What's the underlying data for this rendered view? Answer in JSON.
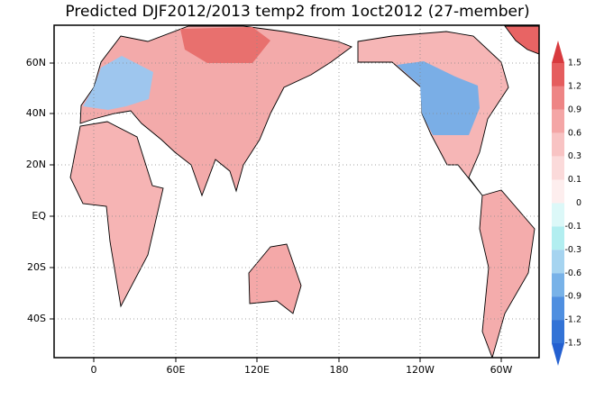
{
  "title": "Predicted DJF2012/2013 temp2 from 1oct2012 (27-member)",
  "lat_labels": [
    "60N",
    "40N",
    "20N",
    "EQ",
    "20S",
    "40S"
  ],
  "lon_labels": [
    "0",
    "60E",
    "120E",
    "180",
    "120W",
    "60W"
  ],
  "colorbar": {
    "labels": [
      "1.5",
      "1.2",
      "0.9",
      "0.6",
      "0.3",
      "0.1",
      "0",
      "-0.1",
      "-0.3",
      "-0.6",
      "-0.9",
      "-1.2",
      "-1.5"
    ],
    "colors": [
      "#d83a3e",
      "#e55d5e",
      "#ee8585",
      "#f4a6a6",
      "#f8c3c3",
      "#fbdada",
      "#fdeeee",
      "#dcf8f8",
      "#b2eef0",
      "#a6d4f0",
      "#78b2e8",
      "#4f8fe0",
      "#3373d6",
      "#2460d0"
    ]
  }
}
